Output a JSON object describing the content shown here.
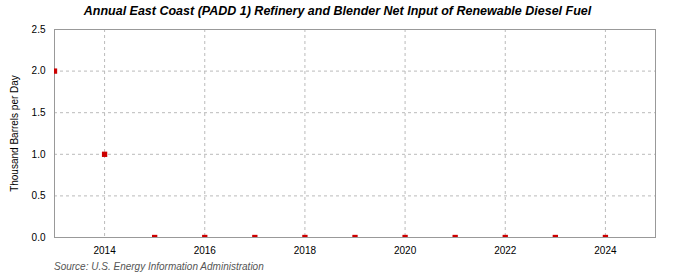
{
  "chart_data": {
    "type": "scatter",
    "title": "Annual East Coast (PADD 1) Refinery and Blender Net Input of Renewable Diesel Fuel",
    "ylabel": "Thousand Barrels per Day",
    "source": "Source: U.S. Energy Information Administration",
    "x": [
      2013,
      2014,
      2015,
      2016,
      2017,
      2018,
      2019,
      2020,
      2021,
      2022,
      2023,
      2024
    ],
    "values": [
      2.0,
      1.0,
      0.0,
      0.0,
      0.0,
      0.0,
      0.0,
      0.0,
      0.0,
      0.0,
      0.0,
      0.0
    ],
    "color": "#cc0000",
    "marker": "square",
    "xlim": [
      2013.0,
      2025.0
    ],
    "xticks": [
      2014,
      2016,
      2018,
      2020,
      2022,
      2024
    ],
    "ylim": [
      0.0,
      2.5
    ],
    "yticks": [
      {
        "value": 0.0,
        "label": "0.0"
      },
      0.5,
      {
        "value": 1.0,
        "label": "1.0"
      },
      1.5,
      {
        "value": 2.0,
        "label": "2.0"
      },
      2.5
    ],
    "grid": true
  }
}
